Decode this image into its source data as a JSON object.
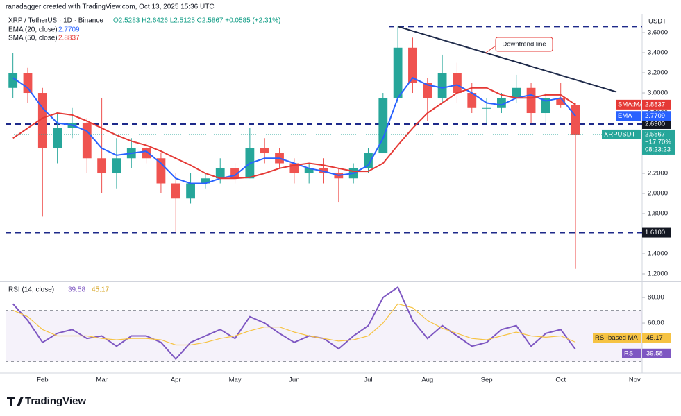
{
  "header": {
    "credit": "ranadagger created with TradingView.com, Oct 13, 2025 15:36 UTC"
  },
  "footer": {
    "brand": "TradingView"
  },
  "chart_data": [
    {
      "type": "candlestick",
      "title": "XRP / TetherUS · 1D · Binance",
      "subtitle": "O2.5283 H2.6426 L2.5125 C2.5867 +0.0585 (+2.31%)",
      "unit": "USDT",
      "symbol": "XRPUSDT",
      "change": "−17.70%",
      "countdown": "08:23:23",
      "up_color": "#26a69a",
      "down_color": "#ef5350",
      "categories": [
        null,
        null,
        "Feb",
        null,
        null,
        null,
        "Mar",
        null,
        null,
        null,
        null,
        "Apr",
        null,
        null,
        null,
        "May",
        null,
        null,
        null,
        "Jun",
        null,
        null,
        null,
        null,
        "Jul",
        null,
        null,
        null,
        "Aug",
        null,
        null,
        null,
        "Sep",
        null,
        null,
        null,
        null,
        "Oct",
        null,
        null,
        null,
        null,
        "Nov"
      ],
      "open": [
        3.05,
        3.2,
        3.0,
        2.45,
        2.65,
        2.7,
        2.35,
        2.2,
        2.35,
        2.45,
        2.35,
        2.1,
        1.95,
        2.1,
        2.15,
        2.25,
        2.15,
        2.45,
        2.4,
        2.3,
        2.2,
        2.25,
        2.2,
        2.15,
        2.25,
        2.4,
        2.95,
        3.45,
        3.1,
        2.95,
        3.2,
        3.0,
        2.85,
        2.85,
        2.95,
        3.05,
        2.8,
        2.95,
        2.88,
        null,
        null,
        null,
        null
      ],
      "high": [
        3.4,
        3.25,
        3.05,
        2.8,
        2.85,
        2.75,
        2.95,
        2.55,
        2.55,
        2.5,
        2.4,
        2.2,
        2.2,
        2.2,
        2.35,
        2.3,
        2.65,
        2.55,
        2.45,
        2.35,
        2.3,
        2.35,
        2.25,
        2.3,
        2.45,
        3.0,
        3.66,
        3.55,
        3.15,
        3.38,
        3.3,
        3.1,
        2.95,
        3.0,
        3.18,
        3.1,
        3.0,
        3.1,
        2.9,
        null,
        null,
        null,
        null
      ],
      "low": [
        2.95,
        2.9,
        1.77,
        2.3,
        2.55,
        2.2,
        2.0,
        2.05,
        2.25,
        2.3,
        2.0,
        1.62,
        1.9,
        2.05,
        2.1,
        2.1,
        2.15,
        2.3,
        2.25,
        2.1,
        2.1,
        2.1,
        1.91,
        2.1,
        2.2,
        2.4,
        2.9,
        3.0,
        2.72,
        2.9,
        2.9,
        2.8,
        2.7,
        2.8,
        2.9,
        2.7,
        2.7,
        2.85,
        1.25,
        null,
        null,
        null,
        null
      ],
      "close": [
        3.2,
        3.0,
        2.45,
        2.65,
        2.7,
        2.35,
        2.2,
        2.35,
        2.45,
        2.35,
        2.1,
        1.95,
        2.1,
        2.15,
        2.25,
        2.15,
        2.45,
        2.4,
        2.3,
        2.2,
        2.25,
        2.2,
        2.15,
        2.25,
        2.4,
        2.95,
        3.45,
        3.1,
        2.95,
        3.2,
        3.0,
        2.85,
        2.85,
        2.95,
        3.05,
        2.8,
        2.95,
        2.88,
        2.5867,
        null,
        null,
        null,
        null
      ],
      "series": [
        {
          "name": "EMA (20, close)",
          "tag": "EMA",
          "color": "#2962ff",
          "values": [
            3.15,
            3.05,
            2.85,
            2.7,
            2.68,
            2.62,
            2.45,
            2.38,
            2.4,
            2.42,
            2.3,
            2.15,
            2.1,
            2.1,
            2.15,
            2.18,
            2.3,
            2.35,
            2.35,
            2.3,
            2.25,
            2.22,
            2.18,
            2.2,
            2.28,
            2.55,
            2.95,
            3.15,
            3.08,
            3.05,
            3.08,
            3.0,
            2.9,
            2.88,
            2.95,
            2.98,
            2.92,
            2.95,
            2.7709,
            null,
            null,
            null,
            null
          ]
        },
        {
          "name": "SMA (50, close)",
          "tag": "SMA:MA",
          "color": "#e53935",
          "values": [
            2.55,
            2.65,
            2.75,
            2.8,
            2.78,
            2.72,
            2.65,
            2.58,
            2.52,
            2.48,
            2.42,
            2.35,
            2.28,
            2.2,
            2.15,
            2.15,
            2.16,
            2.2,
            2.25,
            2.28,
            2.3,
            2.28,
            2.25,
            2.22,
            2.22,
            2.3,
            2.48,
            2.65,
            2.8,
            2.9,
            3.0,
            3.05,
            3.05,
            2.98,
            2.95,
            2.95,
            2.98,
            2.98,
            2.8837,
            null,
            null,
            null,
            null
          ]
        }
      ],
      "hlines": [
        3.66,
        {
          "value": 2.69,
          "label": "2.6900"
        },
        {
          "value": 1.61,
          "label": "1.6100"
        }
      ],
      "trendline": {
        "label": "Downtrend line",
        "start": 3.66,
        "end": 3.01,
        "color": "#1e2a4a"
      },
      "ylim": [
        1.131,
        3.752
      ],
      "yticks": [
        {
          "value": 1.2,
          "label": "1.2000"
        },
        {
          "value": 1.4,
          "label": "1.4000"
        },
        {
          "value": 1.6,
          "label": "1.6000"
        },
        {
          "value": 1.8,
          "label": "1.8000"
        },
        {
          "value": 2.0,
          "label": "2.0000"
        },
        {
          "value": 2.2,
          "label": "2.2000"
        },
        {
          "value": 2.4,
          "label": "2.4000"
        },
        {
          "value": 2.6,
          "label": "2.6000"
        },
        {
          "value": 2.8,
          "label": "2.8000"
        },
        {
          "value": 3.0,
          "label": "3.0000"
        },
        {
          "value": 3.2,
          "label": "3.2000"
        },
        {
          "value": 3.4,
          "label": "3.4000"
        },
        {
          "value": 3.6,
          "label": "3.6000"
        }
      ]
    },
    {
      "type": "line",
      "title": "RSI (14, close)",
      "series": [
        {
          "name": "RSI",
          "color": "#7e57c2",
          "values": [
            75,
            62,
            45,
            52,
            55,
            48,
            50,
            42,
            50,
            50,
            45,
            32,
            45,
            50,
            55,
            48,
            65,
            60,
            52,
            45,
            50,
            48,
            40,
            50,
            58,
            80,
            88,
            62,
            48,
            58,
            50,
            42,
            45,
            55,
            58,
            42,
            52,
            55,
            39.58,
            null,
            null,
            null,
            null
          ]
        },
        {
          "name": "RSI-based MA",
          "color": "#f6c343",
          "values": [
            70,
            65,
            55,
            50,
            50,
            50,
            48,
            47,
            48,
            48,
            47,
            43,
            43,
            45,
            48,
            50,
            54,
            57,
            57,
            53,
            50,
            48,
            46,
            47,
            50,
            60,
            75,
            72,
            62,
            56,
            52,
            48,
            47,
            50,
            53,
            50,
            49,
            50,
            45.17,
            null,
            null,
            null,
            null
          ]
        }
      ],
      "hlines": [
        70,
        50,
        30
      ],
      "ylim": [
        22.7,
        91.4
      ],
      "yticks": [
        {
          "value": 60,
          "label": "60.00"
        },
        {
          "value": 80,
          "label": "80.00"
        }
      ]
    }
  ]
}
